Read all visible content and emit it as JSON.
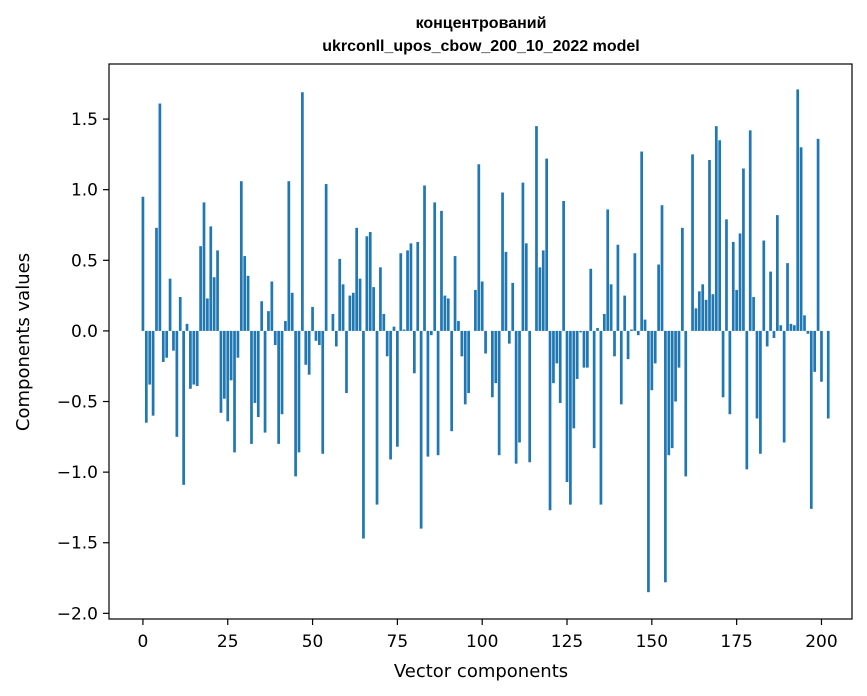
{
  "chart_data": {
    "type": "bar",
    "title_line1": "концентрований",
    "title_line2": "ukrconll_upos_cbow_200_10_2022 model",
    "xlabel": "Vector components",
    "ylabel": "Components values",
    "xlim": [
      -10,
      209
    ],
    "ylim": [
      -2.04,
      1.89
    ],
    "xticks": [
      0,
      25,
      50,
      75,
      100,
      125,
      150,
      175,
      200
    ],
    "yticks": [
      -2.0,
      -1.5,
      -1.0,
      -0.5,
      0.0,
      0.5,
      1.0,
      1.5
    ],
    "ytick_labels": [
      "−2.0",
      "−1.5",
      "−1.0",
      "−0.5",
      "0.0",
      "0.5",
      "1.0",
      "1.5"
    ],
    "bar_color": "#1f77b4",
    "grid": false,
    "values": [
      0.95,
      -0.65,
      -0.38,
      -0.6,
      0.73,
      1.61,
      -0.22,
      -0.19,
      0.37,
      -0.14,
      -0.75,
      0.24,
      -1.09,
      0.05,
      -0.41,
      -0.38,
      -0.39,
      0.6,
      0.91,
      0.23,
      0.74,
      0.38,
      0.57,
      -0.58,
      -0.48,
      -0.64,
      -0.35,
      -0.86,
      -0.19,
      1.06,
      0.53,
      0.39,
      -0.8,
      -0.51,
      -0.61,
      0.21,
      -0.72,
      0.14,
      0.35,
      -0.1,
      -0.8,
      -0.59,
      0.07,
      1.06,
      0.27,
      -1.03,
      -0.86,
      1.69,
      -0.24,
      -0.31,
      0.17,
      -0.07,
      -0.1,
      -0.87,
      1.04,
      0.0,
      0.12,
      -0.11,
      0.51,
      0.33,
      -0.44,
      0.25,
      0.27,
      0.73,
      0.37,
      -1.47,
      0.67,
      0.7,
      0.31,
      -1.23,
      0.45,
      0.12,
      -0.18,
      -0.91,
      0.03,
      -0.82,
      0.55,
      0.01,
      0.57,
      0.62,
      -0.3,
      0.63,
      -1.4,
      1.03,
      -0.89,
      -0.03,
      0.91,
      -0.88,
      0.85,
      0.25,
      0.23,
      -0.71,
      0.53,
      0.07,
      -0.18,
      -0.52,
      -0.44,
      0.0,
      0.29,
      1.18,
      0.35,
      -0.16,
      0.0,
      -0.47,
      -0.37,
      -0.88,
      0.98,
      0.56,
      -0.09,
      0.34,
      -0.94,
      -0.79,
      1.05,
      0.62,
      -0.93,
      0.0,
      1.45,
      0.45,
      0.57,
      1.22,
      -1.27,
      -0.37,
      -0.23,
      -0.51,
      0.92,
      -1.07,
      -1.23,
      -0.69,
      -0.34,
      -0.01,
      -0.26,
      -0.26,
      0.44,
      -0.83,
      0.02,
      -1.23,
      0.12,
      0.86,
      0.33,
      -0.18,
      0.61,
      -0.52,
      0.25,
      -0.2,
      0.01,
      0.55,
      -0.03,
      1.27,
      0.08,
      -1.85,
      -0.42,
      -0.23,
      0.47,
      0.89,
      -1.78,
      -0.88,
      -0.83,
      -0.5,
      -0.26,
      0.73,
      -1.03,
      0.0,
      1.25,
      0.16,
      0.28,
      0.33,
      0.22,
      1.21,
      0.26,
      1.45,
      1.35,
      -0.47,
      0.79,
      -0.59,
      0.63,
      0.29,
      0.69,
      1.15,
      -0.98,
      1.42,
      0.24,
      -0.62,
      -0.87,
      0.64,
      -0.11,
      0.42,
      -0.05,
      0.82,
      0.04,
      -0.79,
      0.48,
      0.05,
      0.04,
      1.71,
      1.3,
      0.11,
      -0.02,
      -1.26,
      -0.29,
      1.36,
      -0.36,
      0.0,
      -0.62
    ]
  }
}
